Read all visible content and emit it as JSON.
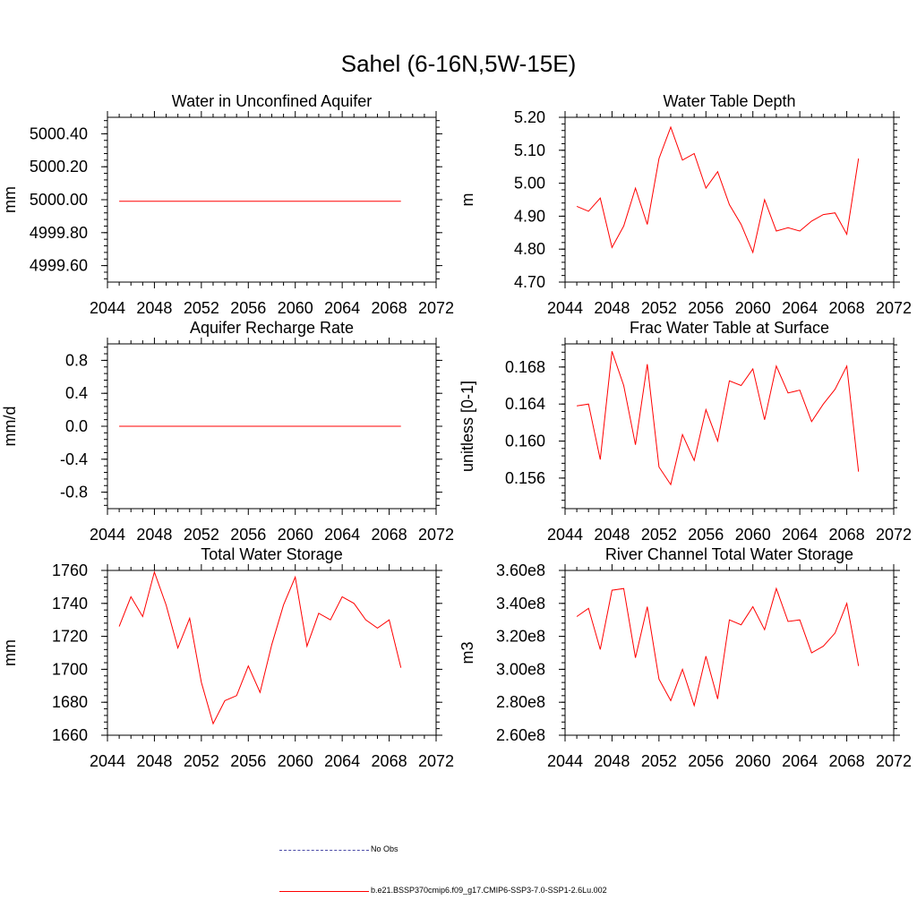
{
  "title": "Sahel (6-16N,5W-15E)",
  "legend": [
    {
      "label": "No Obs",
      "color": "#4a4aa6",
      "style": "dashed"
    },
    {
      "label": "b.e21.BSSP370cmip6.f09_g17.CMIP6-SSP3-7.0-SSP1-2.6Lu.002",
      "color": "#ff0000",
      "style": "solid"
    }
  ],
  "chart_data": [
    {
      "type": "line",
      "title": "Water in Unconfined Aquifer",
      "xlabel": "",
      "ylabel": "mm",
      "xlim": [
        2044,
        2072
      ],
      "xticks": [
        "2044",
        "2048",
        "2052",
        "2056",
        "2060",
        "2064",
        "2068",
        "2072"
      ],
      "ylim": [
        4999.5,
        5000.5
      ],
      "yticks": [
        "4999.60",
        "4999.80",
        "5000.00",
        "5000.20",
        "5000.40"
      ],
      "x": [
        2045,
        2046,
        2047,
        2048,
        2049,
        2050,
        2051,
        2052,
        2053,
        2054,
        2055,
        2056,
        2057,
        2058,
        2059,
        2060,
        2061,
        2062,
        2063,
        2064,
        2065,
        2066,
        2067,
        2068,
        2069
      ],
      "series": [
        {
          "color": "#ff0000",
          "values": [
            4999.99,
            4999.99,
            4999.99,
            4999.99,
            4999.99,
            4999.99,
            4999.99,
            4999.99,
            4999.99,
            4999.99,
            4999.99,
            4999.99,
            4999.99,
            4999.99,
            4999.99,
            4999.99,
            4999.99,
            4999.99,
            4999.99,
            4999.99,
            4999.99,
            4999.99,
            4999.99,
            4999.99,
            4999.99
          ]
        }
      ]
    },
    {
      "type": "line",
      "title": "Water Table Depth",
      "xlabel": "",
      "ylabel": "m",
      "xlim": [
        2044,
        2072
      ],
      "xticks": [
        "2044",
        "2048",
        "2052",
        "2056",
        "2060",
        "2064",
        "2068",
        "2072"
      ],
      "ylim": [
        4.7,
        5.2
      ],
      "yticks": [
        "4.70",
        "4.80",
        "4.90",
        "5.00",
        "5.10",
        "5.20"
      ],
      "x": [
        2045,
        2046,
        2047,
        2048,
        2049,
        2050,
        2051,
        2052,
        2053,
        2054,
        2055,
        2056,
        2057,
        2058,
        2059,
        2060,
        2061,
        2062,
        2063,
        2064,
        2065,
        2066,
        2067,
        2068,
        2069
      ],
      "series": [
        {
          "color": "#ff0000",
          "values": [
            4.93,
            4.915,
            4.955,
            4.805,
            4.87,
            4.985,
            4.875,
            5.075,
            5.17,
            5.07,
            5.09,
            4.985,
            5.035,
            4.935,
            4.875,
            4.79,
            4.95,
            4.855,
            4.865,
            4.855,
            4.885,
            4.905,
            4.91,
            4.845,
            5.075
          ]
        }
      ]
    },
    {
      "type": "line",
      "title": "Aquifer Recharge Rate",
      "xlabel": "",
      "ylabel": "mm/d",
      "xlim": [
        2044,
        2072
      ],
      "xticks": [
        "2044",
        "2048",
        "2052",
        "2056",
        "2060",
        "2064",
        "2068",
        "2072"
      ],
      "ylim": [
        -1.0,
        1.0
      ],
      "yticks": [
        "-0.8",
        "-0.4",
        "0.0",
        "0.4",
        "0.8"
      ],
      "x": [
        2045,
        2046,
        2047,
        2048,
        2049,
        2050,
        2051,
        2052,
        2053,
        2054,
        2055,
        2056,
        2057,
        2058,
        2059,
        2060,
        2061,
        2062,
        2063,
        2064,
        2065,
        2066,
        2067,
        2068,
        2069
      ],
      "series": [
        {
          "color": "#ff0000",
          "values": [
            0,
            0,
            0,
            0,
            0,
            0,
            0,
            0,
            0,
            0,
            0,
            0,
            0,
            0,
            0,
            0,
            0,
            0,
            0,
            0,
            0,
            0,
            0,
            0,
            0
          ]
        }
      ]
    },
    {
      "type": "line",
      "title": "Frac Water Table at Surface",
      "xlabel": "",
      "ylabel": "unitless [0-1]",
      "xlim": [
        2044,
        2072
      ],
      "xticks": [
        "2044",
        "2048",
        "2052",
        "2056",
        "2060",
        "2064",
        "2068",
        "2072"
      ],
      "ylim": [
        0.1527,
        0.1705
      ],
      "yticks": [
        "0.156",
        "0.160",
        "0.164",
        "0.168"
      ],
      "x": [
        2045,
        2046,
        2047,
        2048,
        2049,
        2050,
        2051,
        2052,
        2053,
        2054,
        2055,
        2056,
        2057,
        2058,
        2059,
        2060,
        2061,
        2062,
        2063,
        2064,
        2065,
        2066,
        2067,
        2068,
        2069
      ],
      "series": [
        {
          "color": "#ff0000",
          "values": [
            0.1638,
            0.164,
            0.158,
            0.1697,
            0.166,
            0.1596,
            0.1683,
            0.1572,
            0.1553,
            0.1607,
            0.1579,
            0.1634,
            0.16,
            0.1665,
            0.166,
            0.1678,
            0.1623,
            0.1681,
            0.1652,
            0.1655,
            0.1621,
            0.164,
            0.1656,
            0.1681,
            0.1567
          ]
        }
      ]
    },
    {
      "type": "line",
      "title": "Total Water Storage",
      "xlabel": "",
      "ylabel": "mm",
      "xlim": [
        2044,
        2072
      ],
      "xticks": [
        "2044",
        "2048",
        "2052",
        "2056",
        "2060",
        "2064",
        "2068",
        "2072"
      ],
      "ylim": [
        1660,
        1760
      ],
      "yticks": [
        "1660",
        "1680",
        "1700",
        "1720",
        "1740",
        "1760"
      ],
      "x": [
        2045,
        2046,
        2047,
        2048,
        2049,
        2050,
        2051,
        2052,
        2053,
        2054,
        2055,
        2056,
        2057,
        2058,
        2059,
        2060,
        2061,
        2062,
        2063,
        2064,
        2065,
        2066,
        2067,
        2068,
        2069
      ],
      "series": [
        {
          "color": "#ff0000",
          "values": [
            1726,
            1744,
            1732,
            1759,
            1739,
            1713,
            1731,
            1692,
            1667,
            1681,
            1684,
            1702,
            1686,
            1715,
            1739,
            1756,
            1714,
            1734,
            1730,
            1744,
            1740,
            1730,
            1725,
            1730,
            1701
          ]
        }
      ]
    },
    {
      "type": "line",
      "title": "River Channel Total Water Storage",
      "xlabel": "",
      "ylabel": "m3",
      "xlim": [
        2044,
        2072
      ],
      "xticks": [
        "2044",
        "2048",
        "2052",
        "2056",
        "2060",
        "2064",
        "2068",
        "2072"
      ],
      "ylim": [
        260000000,
        360000000
      ],
      "yticks": [
        "2.60e8",
        "2.80e8",
        "3.00e8",
        "3.20e8",
        "3.40e8",
        "3.60e8"
      ],
      "x": [
        2045,
        2046,
        2047,
        2048,
        2049,
        2050,
        2051,
        2052,
        2053,
        2054,
        2055,
        2056,
        2057,
        2058,
        2059,
        2060,
        2061,
        2062,
        2063,
        2064,
        2065,
        2066,
        2067,
        2068,
        2069
      ],
      "series": [
        {
          "color": "#ff0000",
          "values": [
            332000000,
            337000000,
            312000000,
            348000000,
            349000000,
            307000000,
            338000000,
            294000000,
            281000000,
            300000000,
            278000000,
            308000000,
            282000000,
            330000000,
            327000000,
            338000000,
            324000000,
            349000000,
            329000000,
            330000000,
            310000000,
            314000000,
            322000000,
            340000000,
            302000000
          ]
        }
      ]
    }
  ]
}
